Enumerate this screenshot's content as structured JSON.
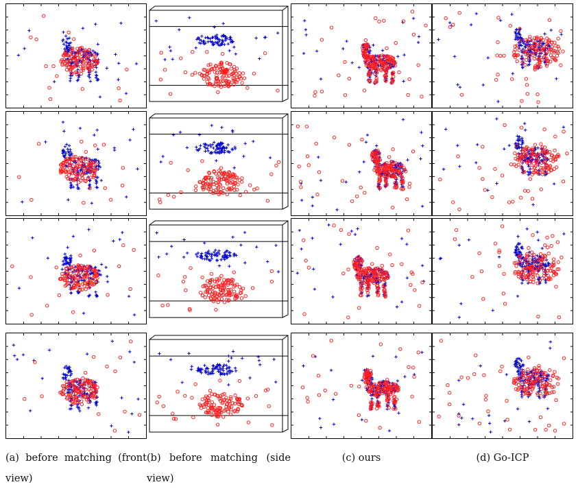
{
  "figure": {
    "columns": [
      {
        "id": "a",
        "caption_lines": [
          [
            "(a)",
            "before",
            "matching",
            "(front"
          ],
          [
            "view)"
          ]
        ]
      },
      {
        "id": "b",
        "caption_lines": [
          [
            "(b)",
            "before",
            "matching",
            "(side"
          ],
          [
            "view)"
          ]
        ]
      },
      {
        "id": "c",
        "caption_lines": [
          [
            "(c) ours"
          ]
        ]
      },
      {
        "id": "d",
        "caption_lines": [
          [
            "(d) Go-ICP"
          ]
        ]
      }
    ],
    "colors": {
      "template_points": "#0000cc",
      "target_points": "#ff2020",
      "frame": "#000000"
    },
    "markers": {
      "template": "plus",
      "target": "circle"
    }
  }
}
